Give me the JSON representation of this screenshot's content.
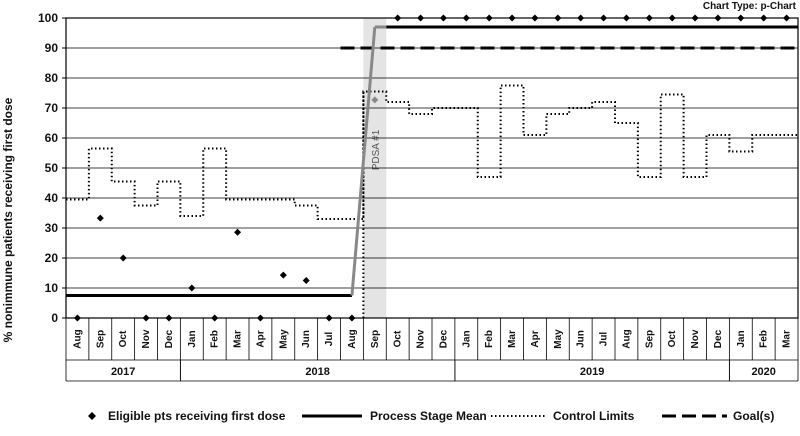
{
  "chart_type_label": "Chart Type: p-Chart",
  "chart_data": {
    "type": "line",
    "ylabel": "% nonimmune patients receiving first dose",
    "ylim": [
      0,
      100
    ],
    "yticks": [
      0,
      10,
      20,
      30,
      40,
      50,
      60,
      70,
      80,
      90,
      100
    ],
    "categories": [
      "Aug",
      "Sep",
      "Oct",
      "Nov",
      "Dec",
      "Jan",
      "Feb",
      "Mar",
      "Apr",
      "May",
      "Jun",
      "Jul",
      "Aug",
      "Sep",
      "Oct",
      "Nov",
      "Dec",
      "Jan",
      "Feb",
      "Mar",
      "Apr",
      "May",
      "Jun",
      "Jul",
      "Aug",
      "Sep",
      "Oct",
      "Nov",
      "Dec",
      "Jan",
      "Feb",
      "Mar"
    ],
    "years": [
      {
        "label": "2017",
        "start": 0,
        "end": 4
      },
      {
        "label": "2018",
        "start": 5,
        "end": 16
      },
      {
        "label": "2019",
        "start": 17,
        "end": 28
      },
      {
        "label": "2020",
        "start": 29,
        "end": 31
      }
    ],
    "series": [
      {
        "name": "Eligible pts receiving first dose",
        "values": [
          0,
          33.3,
          20,
          0,
          0,
          10,
          0,
          28.6,
          0,
          14.3,
          12.5,
          0,
          0,
          72.7,
          100,
          100,
          100,
          100,
          100,
          100,
          100,
          100,
          100,
          100,
          100,
          100,
          100,
          100,
          100,
          100,
          100,
          100
        ]
      },
      {
        "name": "Process Stage Mean",
        "values": [
          7.5,
          7.5,
          7.5,
          7.5,
          7.5,
          7.5,
          7.5,
          7.5,
          7.5,
          7.5,
          7.5,
          7.5,
          7.5,
          97,
          97,
          97,
          97,
          97,
          97,
          97,
          97,
          97,
          97,
          97,
          97,
          97,
          97,
          97,
          97,
          97,
          97,
          97
        ]
      },
      {
        "name": "Control Limits",
        "values": [
          39.5,
          56.5,
          45.5,
          37.5,
          45.5,
          34,
          56.5,
          39.5,
          39.5,
          39.5,
          37.5,
          33,
          33,
          75.5,
          72,
          68,
          70,
          70,
          47,
          77.5,
          61,
          68,
          70,
          72,
          65,
          47,
          74.5,
          47,
          61,
          55.5,
          61,
          61
        ],
        "first_step_low": 0
      },
      {
        "name": "Goal(s)",
        "values": [
          null,
          null,
          null,
          null,
          null,
          null,
          null,
          null,
          null,
          null,
          null,
          null,
          90,
          90,
          90,
          90,
          90,
          90,
          90,
          90,
          90,
          90,
          90,
          90,
          90,
          90,
          90,
          90,
          90,
          90,
          90,
          90
        ]
      }
    ],
    "annotations": [
      {
        "text": "PDSA #1",
        "index": 13
      }
    ],
    "grid": true,
    "legend_position": "bottom"
  },
  "legend": {
    "items": [
      {
        "label": "Eligible pts receiving first dose",
        "marker": "diamond"
      },
      {
        "label": "Process Stage Mean",
        "marker": "solid"
      },
      {
        "label": "Control Limits",
        "marker": "dotted"
      },
      {
        "label": "Goal(s)",
        "marker": "dashed"
      }
    ]
  }
}
